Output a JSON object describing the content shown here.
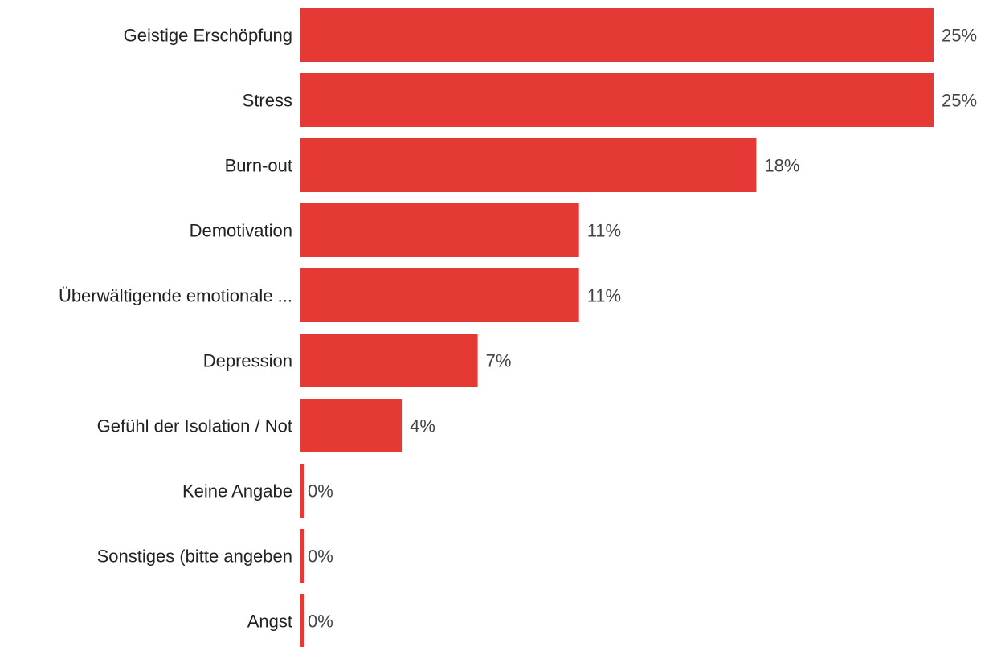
{
  "chart_data": {
    "type": "bar",
    "orientation": "horizontal",
    "categories": [
      "Geistige Erschöpfung",
      "Stress",
      "Burn-out",
      "Demotivation",
      "Überwältigende emotionale ...",
      "Depression",
      "Gefühl der Isolation / Not",
      "Keine Angabe",
      "Sonstiges (bitte angeben",
      "Angst"
    ],
    "values": [
      25,
      25,
      18,
      11,
      11,
      7,
      4,
      0,
      0,
      0
    ],
    "value_labels": [
      "25%",
      "25%",
      "18%",
      "11%",
      "11%",
      "7%",
      "4%",
      "0%",
      "0%",
      "0%"
    ],
    "unit": "%",
    "xlim": [
      0,
      25
    ],
    "grid": false,
    "legend": "none",
    "bar_color": "#e53935"
  }
}
